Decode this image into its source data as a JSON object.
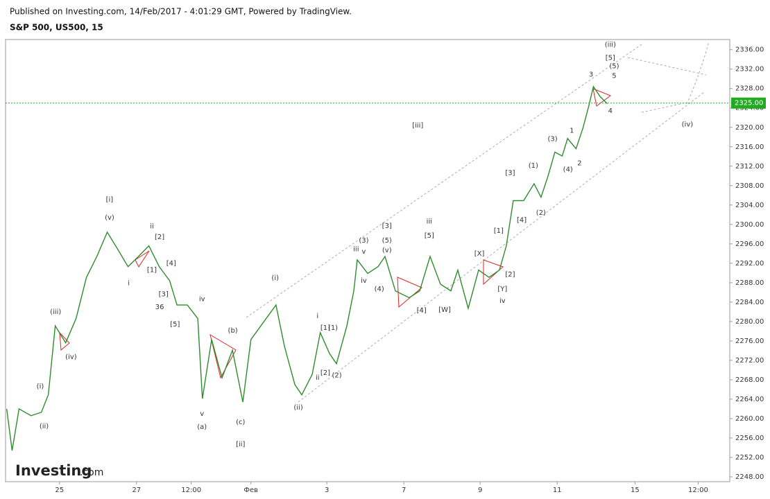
{
  "header": {
    "published": "Published on Investing.com, 14/Feb/2017 - 4:01:29 GMT, Powered by TradingView.",
    "symbol": "S&P 500, US500, 15"
  },
  "brand": "Investing",
  "brand_suffix": ".com",
  "chart_data": {
    "type": "line",
    "color": "#2e8b2e",
    "x": [
      -1.37,
      -1.23,
      -1.05,
      -0.74,
      -0.47,
      -0.29,
      -0.11,
      0.16,
      0.43,
      0.7,
      0.97,
      1.24,
      1.51,
      1.78,
      2.05,
      2.32,
      2.59,
      2.86,
      3.05,
      3.32,
      3.59,
      3.71,
      3.95,
      4.22,
      4.49,
      4.76,
      4.97,
      5.3,
      5.62,
      5.84,
      6.11,
      6.29,
      6.56,
      6.77,
      7.01,
      7.19,
      7.46,
      7.64,
      7.73,
      8.0,
      8.27,
      8.45,
      8.72,
      9.08,
      9.35,
      9.62,
      9.89,
      10.16,
      10.34,
      10.61,
      10.88,
      11.15,
      11.42,
      11.6,
      11.78,
      12.05,
      12.32,
      12.5,
      12.68,
      12.86,
      13.05,
      13.19,
      13.41,
      13.59,
      13.73,
      13.86,
      14.04,
      14.22
    ],
    "values": [
      2262,
      2253.4,
      2262,
      2260.6,
      2261.3,
      2264.9,
      2279.1,
      2275.6,
      2280.6,
      2289.1,
      2293.4,
      2298.4,
      2294.9,
      2291.3,
      2293.4,
      2295.6,
      2291.3,
      2288.4,
      2283.4,
      2283.4,
      2280.6,
      2264.1,
      2276.3,
      2268.4,
      2274.1,
      2263.4,
      2276.3,
      2279.9,
      2283.4,
      2274.9,
      2267,
      2264.9,
      2269.1,
      2277.7,
      2273.4,
      2271.3,
      2279.1,
      2286.3,
      2292.7,
      2289.9,
      2291.3,
      2293.4,
      2286.3,
      2284.9,
      2286.3,
      2293.4,
      2287.7,
      2286.3,
      2290.6,
      2282.7,
      2290.6,
      2289.1,
      2290.6,
      2295.6,
      2304.9,
      2304.9,
      2308.4,
      2305.6,
      2309.9,
      2314.9,
      2314.1,
      2317.7,
      2315.6,
      2319.9,
      2324.1,
      2328.4,
      2326.3,
      2324.9
    ],
    "xlim": [
      -1.4,
      17.4
    ],
    "ylim": [
      2247,
      2338.1
    ],
    "xticks": [
      {
        "value": 0,
        "label": "25"
      },
      {
        "value": 2,
        "label": "27"
      },
      {
        "value": 3.42,
        "label": "12:00"
      },
      {
        "value": 4.97,
        "label": "Фев"
      },
      {
        "value": 6.94,
        "label": "3"
      },
      {
        "value": 8.94,
        "label": "7"
      },
      {
        "value": 10.92,
        "label": "9"
      },
      {
        "value": 12.92,
        "label": "11"
      },
      {
        "value": 14.94,
        "label": "15"
      },
      {
        "value": 16.58,
        "label": "12:00"
      }
    ],
    "yticks": [
      {
        "value": 2248,
        "label": "2248.00"
      },
      {
        "value": 2252,
        "label": "2252.00"
      },
      {
        "value": 2256,
        "label": "2256.00"
      },
      {
        "value": 2260,
        "label": "2260.00"
      },
      {
        "value": 2264,
        "label": "2264.00"
      },
      {
        "value": 2268,
        "label": "2268.00"
      },
      {
        "value": 2272,
        "label": "2272.00"
      },
      {
        "value": 2276,
        "label": "2276.00"
      },
      {
        "value": 2280,
        "label": "2280.00"
      },
      {
        "value": 2284,
        "label": "2284.00"
      },
      {
        "value": 2288,
        "label": "2288.00"
      },
      {
        "value": 2292,
        "label": "2292.00"
      },
      {
        "value": 2296,
        "label": "2296.00"
      },
      {
        "value": 2300,
        "label": "2300.00"
      },
      {
        "value": 2304,
        "label": "2304.00"
      },
      {
        "value": 2308,
        "label": "2308.00"
      },
      {
        "value": 2312,
        "label": "2312.00"
      },
      {
        "value": 2316,
        "label": "2316.00"
      },
      {
        "value": 2320,
        "label": "2320.00"
      },
      {
        "value": 2324,
        "label": "2324.00"
      },
      {
        "value": 2328,
        "label": "2328.00"
      },
      {
        "value": 2332,
        "label": "2332.00"
      },
      {
        "value": 2336,
        "label": "2336.00"
      }
    ],
    "last_price": {
      "value": 2325,
      "label": "2325.00"
    },
    "last_price_color": "#22aa22",
    "annotations": [
      {
        "text": "[i]",
        "x": 1.3,
        "y": 2305.1
      },
      {
        "text": "(v)",
        "x": 1.3,
        "y": 2301.4
      },
      {
        "text": "ii",
        "x": 2.4,
        "y": 2299.6
      },
      {
        "text": "[2]",
        "x": 2.6,
        "y": 2297.4
      },
      {
        "text": "[4]",
        "x": 2.9,
        "y": 2292
      },
      {
        "text": "[1]",
        "x": 2.4,
        "y": 2290.6
      },
      {
        "text": "i",
        "x": 1.8,
        "y": 2287.9
      },
      {
        "text": "[3]",
        "x": 2.7,
        "y": 2285.6
      },
      {
        "text": "36",
        "x": 2.6,
        "y": 2283
      },
      {
        "text": "[5]",
        "x": 3.0,
        "y": 2279.4
      },
      {
        "text": "iv",
        "x": 3.7,
        "y": 2284.6
      },
      {
        "text": "(iii)",
        "x": -0.1,
        "y": 2282
      },
      {
        "text": "(iv)",
        "x": 0.3,
        "y": 2272.7
      },
      {
        "text": "(i)",
        "x": -0.5,
        "y": 2266.6
      },
      {
        "text": "(ii)",
        "x": -0.4,
        "y": 2258.4
      },
      {
        "text": "v",
        "x": 3.7,
        "y": 2261
      },
      {
        "text": "(a)",
        "x": 3.7,
        "y": 2258.3
      },
      {
        "text": "(b)",
        "x": 4.5,
        "y": 2278.1
      },
      {
        "text": "(c)",
        "x": 4.7,
        "y": 2259.3
      },
      {
        "text": "[ii]",
        "x": 4.7,
        "y": 2254.7
      },
      {
        "text": "(i)",
        "x": 5.6,
        "y": 2289
      },
      {
        "text": "(ii)",
        "x": 6.2,
        "y": 2262.3
      },
      {
        "text": "i",
        "x": 6.7,
        "y": 2281.1
      },
      {
        "text": "[1]",
        "x": 6.9,
        "y": 2278.7
      },
      {
        "text": "(1)",
        "x": 7.1,
        "y": 2278.7
      },
      {
        "text": "[2]",
        "x": 6.9,
        "y": 2269.4
      },
      {
        "text": "(2)",
        "x": 7.2,
        "y": 2268.9
      },
      {
        "text": "ii",
        "x": 6.7,
        "y": 2268.4
      },
      {
        "text": "iii",
        "x": 7.7,
        "y": 2294.9
      },
      {
        "text": "v",
        "x": 7.9,
        "y": 2294.4
      },
      {
        "text": "iv",
        "x": 7.9,
        "y": 2288.4
      },
      {
        "text": "(3)",
        "x": 7.9,
        "y": 2296.7
      },
      {
        "text": "(4)",
        "x": 8.3,
        "y": 2286.7
      },
      {
        "text": "(5)",
        "x": 8.5,
        "y": 2296.7
      },
      {
        "text": "[3]",
        "x": 8.5,
        "y": 2299.7
      },
      {
        "text": "(v)",
        "x": 8.5,
        "y": 2294.7
      },
      {
        "text": "[4]",
        "x": 9.4,
        "y": 2282.3
      },
      {
        "text": "iii",
        "x": 9.6,
        "y": 2300.6
      },
      {
        "text": "[5]",
        "x": 9.6,
        "y": 2297.7
      },
      {
        "text": "[W]",
        "x": 10.0,
        "y": 2282.4
      },
      {
        "text": "[X]",
        "x": 10.9,
        "y": 2294
      },
      {
        "text": "[Y]",
        "x": 11.5,
        "y": 2286.7
      },
      {
        "text": "iv",
        "x": 11.5,
        "y": 2284.3
      },
      {
        "text": "[2]",
        "x": 11.7,
        "y": 2289.7
      },
      {
        "text": "[1]",
        "x": 11.4,
        "y": 2298.7
      },
      {
        "text": "[3]",
        "x": 11.7,
        "y": 2310.6
      },
      {
        "text": "[4]",
        "x": 12.0,
        "y": 2300.9
      },
      {
        "text": "(1)",
        "x": 12.3,
        "y": 2312.1
      },
      {
        "text": "(2)",
        "x": 12.5,
        "y": 2302.4
      },
      {
        "text": "(3)",
        "x": 12.8,
        "y": 2317.6
      },
      {
        "text": "(4)",
        "x": 13.2,
        "y": 2311.3
      },
      {
        "text": "1",
        "x": 13.3,
        "y": 2319.3
      },
      {
        "text": "2",
        "x": 13.5,
        "y": 2312.6
      },
      {
        "text": "3",
        "x": 13.8,
        "y": 2330.9
      },
      {
        "text": "4",
        "x": 14.3,
        "y": 2323.4
      },
      {
        "text": "5",
        "x": 14.4,
        "y": 2330.6
      },
      {
        "text": "(5)",
        "x": 14.4,
        "y": 2332.6
      },
      {
        "text": "[5]",
        "x": 14.3,
        "y": 2334.3
      },
      {
        "text": "(iii)",
        "x": 14.3,
        "y": 2337
      },
      {
        "text": "(iv)",
        "x": 16.3,
        "y": 2320.6
      },
      {
        "text": "[iii]",
        "x": 9.3,
        "y": 2320.4
      }
    ]
  }
}
